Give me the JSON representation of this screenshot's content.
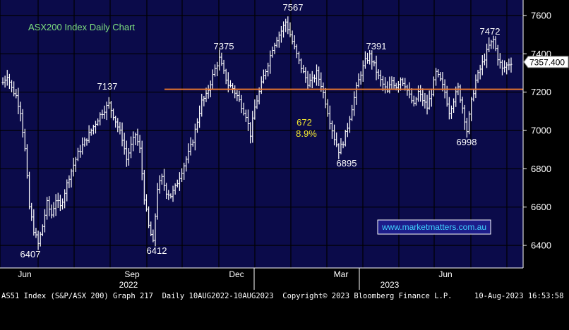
{
  "chart_data": {
    "type": "bar",
    "subtype": "ohlc-daily",
    "title": "ASX200 Index Daily Chart",
    "watermark": "www.marketmatters.com.au",
    "last_price_label": "7357.400",
    "last_price": 7357.4,
    "ylim": [
      6300,
      7700
    ],
    "y_ticks": [
      6400,
      6600,
      6800,
      7000,
      7200,
      7400,
      7600
    ],
    "x_ticks": [
      "Jun",
      "Sep",
      "Dec",
      "Mar",
      "Jun"
    ],
    "x_years": [
      "2022",
      "2023"
    ],
    "support_line": 7215,
    "annotations": {
      "peaks": [
        "7137",
        "7375",
        "7567",
        "7391",
        "7472"
      ],
      "troughs": [
        "6407",
        "6412",
        "6895",
        "6998"
      ],
      "move_points": "672",
      "move_pct": "8.9%"
    },
    "anchors": [
      [
        0,
        7250
      ],
      [
        2,
        7290
      ],
      [
        4,
        7220
      ],
      [
        6,
        7180
      ],
      [
        8,
        7100
      ],
      [
        10,
        6900
      ],
      [
        12,
        6600
      ],
      [
        14,
        6480
      ],
      [
        16,
        6407
      ],
      [
        18,
        6500
      ],
      [
        20,
        6620
      ],
      [
        22,
        6560
      ],
      [
        24,
        6640
      ],
      [
        26,
        6600
      ],
      [
        28,
        6680
      ],
      [
        30,
        6760
      ],
      [
        32,
        6820
      ],
      [
        34,
        6880
      ],
      [
        36,
        6920
      ],
      [
        38,
        6960
      ],
      [
        40,
        7000
      ],
      [
        42,
        7040
      ],
      [
        44,
        7080
      ],
      [
        46,
        7110
      ],
      [
        48,
        7137
      ],
      [
        50,
        7080
      ],
      [
        52,
        7020
      ],
      [
        54,
        6960
      ],
      [
        56,
        6850
      ],
      [
        58,
        6920
      ],
      [
        60,
        6980
      ],
      [
        62,
        6900
      ],
      [
        64,
        6650
      ],
      [
        66,
        6500
      ],
      [
        68,
        6412
      ],
      [
        70,
        6700
      ],
      [
        72,
        6750
      ],
      [
        74,
        6680
      ],
      [
        76,
        6660
      ],
      [
        78,
        6700
      ],
      [
        80,
        6760
      ],
      [
        82,
        6820
      ],
      [
        84,
        6880
      ],
      [
        86,
        6950
      ],
      [
        88,
        7050
      ],
      [
        90,
        7150
      ],
      [
        92,
        7180
      ],
      [
        94,
        7250
      ],
      [
        96,
        7320
      ],
      [
        98,
        7375
      ],
      [
        100,
        7300
      ],
      [
        102,
        7240
      ],
      [
        104,
        7220
      ],
      [
        106,
        7180
      ],
      [
        108,
        7130
      ],
      [
        110,
        7080
      ],
      [
        112,
        6980
      ],
      [
        114,
        7120
      ],
      [
        116,
        7200
      ],
      [
        118,
        7280
      ],
      [
        120,
        7350
      ],
      [
        122,
        7430
      ],
      [
        124,
        7480
      ],
      [
        126,
        7520
      ],
      [
        128,
        7567
      ],
      [
        130,
        7500
      ],
      [
        132,
        7430
      ],
      [
        134,
        7360
      ],
      [
        136,
        7300
      ],
      [
        138,
        7250
      ],
      [
        140,
        7260
      ],
      [
        142,
        7300
      ],
      [
        144,
        7240
      ],
      [
        146,
        7150
      ],
      [
        148,
        7050
      ],
      [
        150,
        6960
      ],
      [
        152,
        6895
      ],
      [
        154,
        6940
      ],
      [
        156,
        7020
      ],
      [
        158,
        7120
      ],
      [
        160,
        7220
      ],
      [
        162,
        7300
      ],
      [
        164,
        7360
      ],
      [
        166,
        7391
      ],
      [
        168,
        7340
      ],
      [
        170,
        7280
      ],
      [
        172,
        7240
      ],
      [
        174,
        7200
      ],
      [
        176,
        7260
      ],
      [
        178,
        7230
      ],
      [
        180,
        7270
      ],
      [
        182,
        7240
      ],
      [
        184,
        7180
      ],
      [
        186,
        7130
      ],
      [
        188,
        7200
      ],
      [
        190,
        7160
      ],
      [
        192,
        7120
      ],
      [
        194,
        7200
      ],
      [
        196,
        7300
      ],
      [
        198,
        7260
      ],
      [
        200,
        7200
      ],
      [
        202,
        7100
      ],
      [
        204,
        7160
      ],
      [
        206,
        7220
      ],
      [
        208,
        7120
      ],
      [
        210,
        6998
      ],
      [
        212,
        7150
      ],
      [
        214,
        7260
      ],
      [
        216,
        7320
      ],
      [
        218,
        7380
      ],
      [
        220,
        7440
      ],
      [
        222,
        7472
      ],
      [
        224,
        7380
      ],
      [
        226,
        7320
      ],
      [
        228,
        7340
      ],
      [
        230,
        7357.4
      ]
    ],
    "num_bars": 231
  },
  "footer": {
    "left": "AS51 Index (S&P/ASX 200) Graph 217  Daily 10AUG2022-10AUG2023  Copyright© 2023 Bloomberg Finance L.P.",
    "right": "10-Aug-2023 16:53:58"
  },
  "colors": {
    "background": "#0b0b4a",
    "bars": "#ffffff",
    "support_line": "#e8772e",
    "title": "#7fe07f",
    "peak_labels": "#ffffff",
    "move_labels": "#f2e82e",
    "watermark_text": "#3fd1ff",
    "grid": "#000000"
  }
}
